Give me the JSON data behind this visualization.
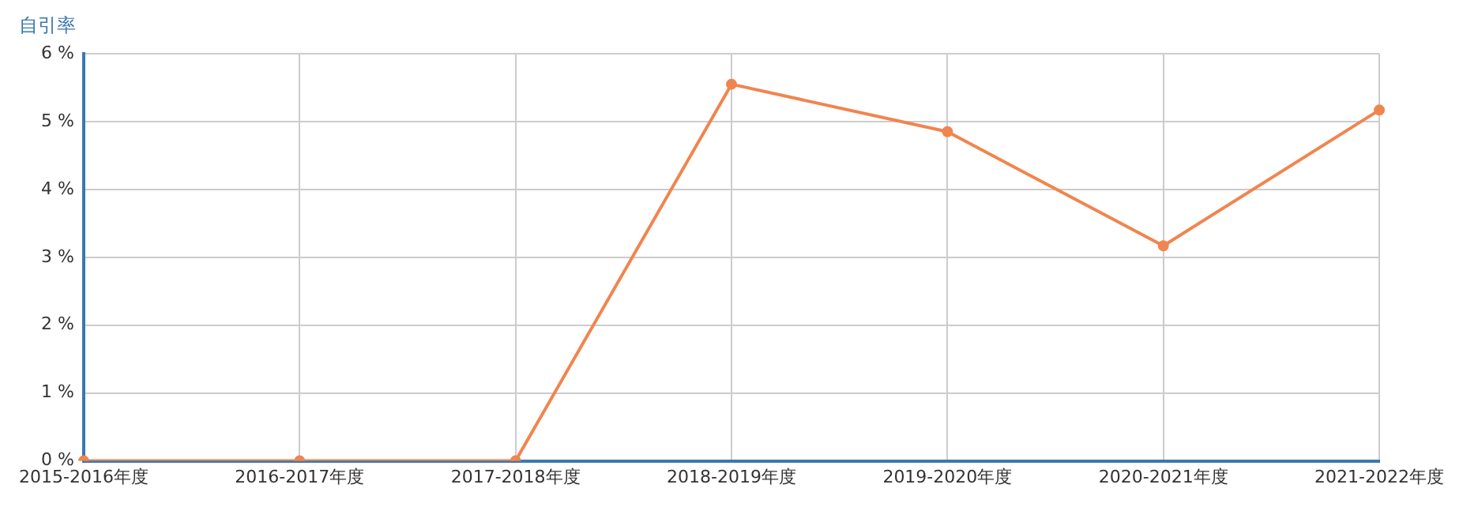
{
  "chart_data": {
    "type": "line",
    "ylabel": "自引率",
    "categories": [
      "2015-2016年度",
      "2016-2017年度",
      "2017-2018年度",
      "2018-2019年度",
      "2019-2020年度",
      "2020-2021年度",
      "2021-2022年度"
    ],
    "series": [
      {
        "color": "#f0854f",
        "values": [
          0,
          0,
          0,
          5.55,
          4.85,
          3.17,
          5.17
        ]
      }
    ],
    "ylim": [
      0,
      6
    ],
    "yticks": [
      {
        "value": 0,
        "label": "0 %"
      },
      {
        "value": 1,
        "label": "1 %"
      },
      {
        "value": 2,
        "label": "2 %"
      },
      {
        "value": 3,
        "label": "3 %"
      },
      {
        "value": 4,
        "label": "4 %"
      },
      {
        "value": 5,
        "label": "5 %"
      },
      {
        "value": 6,
        "label": "6 %"
      }
    ],
    "grid": true,
    "legend": false,
    "marker": "circle",
    "line_style": "solid"
  }
}
